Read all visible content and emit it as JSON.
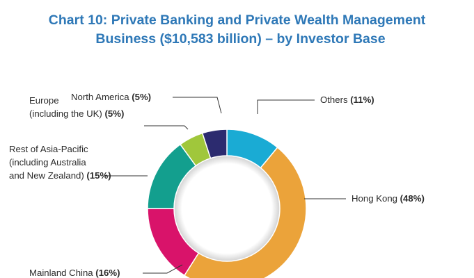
{
  "title": {
    "line1": "Chart 10: Private Banking and Private Wealth Management",
    "line2": "Business ($10,583 billion) – by Investor Base"
  },
  "chart_data": {
    "type": "pie",
    "title": "Chart 10: Private Banking and Private Wealth Management Business ($10,583 billion) – by Investor Base",
    "donut": true,
    "slices": [
      {
        "name": "Others",
        "value": 11,
        "value_label": "(11%)",
        "color": "#1aabd4",
        "label_lines": [
          "Others"
        ]
      },
      {
        "name": "Hong Kong",
        "value": 48,
        "value_label": "(48%)",
        "color": "#eba33a",
        "label_lines": [
          "Hong Kong"
        ]
      },
      {
        "name": "Mainland China",
        "value": 16,
        "value_label": "(16%)",
        "color": "#d9136a",
        "label_lines": [
          "Mainland China"
        ]
      },
      {
        "name": "Rest of Asia-Pacific (including Australia and New Zealand)",
        "value": 15,
        "value_label": "(15%)",
        "color": "#139f8e",
        "label_lines": [
          "Rest of Asia-Pacific",
          "(including Australia",
          "and New Zealand)"
        ]
      },
      {
        "name": "Europe (including the UK)",
        "value": 5,
        "value_label": "(5%)",
        "color": "#a0c73b",
        "label_lines": [
          "Europe",
          "(including the UK)"
        ]
      },
      {
        "name": "North America",
        "value": 5,
        "value_label": "(5%)",
        "color": "#2c2b6f",
        "label_lines": [
          "North America"
        ]
      }
    ]
  }
}
